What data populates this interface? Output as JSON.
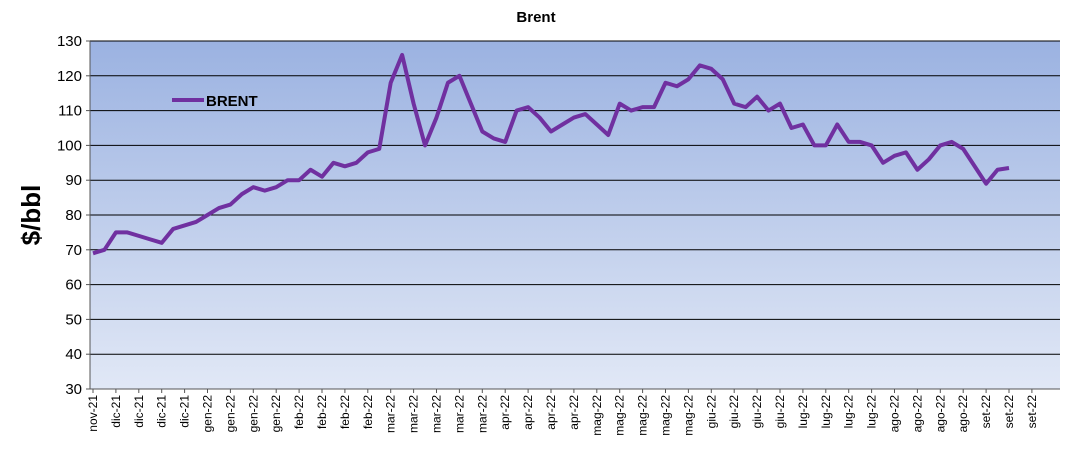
{
  "chart_data": {
    "type": "line",
    "title": "Brent",
    "y_label": "$/bbl",
    "categories": [
      "nov-21",
      null,
      "dic-21",
      null,
      "dic-21",
      null,
      "dic-21",
      null,
      "dic-21",
      null,
      "gen-22",
      null,
      "gen-22",
      null,
      "gen-22",
      null,
      "gen-22",
      null,
      "feb-22",
      null,
      "feb-22",
      null,
      "feb-22",
      null,
      "feb-22",
      null,
      "mar-22",
      null,
      "mar-22",
      null,
      "mar-22",
      null,
      "mar-22",
      null,
      "mar-22",
      null,
      "apr-22",
      null,
      "apr-22",
      null,
      "apr-22",
      null,
      "apr-22",
      null,
      "mag-22",
      null,
      "mag-22",
      null,
      "mag-22",
      null,
      "mag-22",
      null,
      "mag-22",
      null,
      "giu-22",
      null,
      "giu-22",
      null,
      "giu-22",
      null,
      "giu-22",
      null,
      "lug-22",
      null,
      "lug-22",
      null,
      "lug-22",
      null,
      "lug-22",
      null,
      "ago-22",
      null,
      "ago-22",
      null,
      "ago-22",
      null,
      "ago-22",
      null,
      "set-22",
      null,
      "set-22",
      null,
      "set-22"
    ],
    "series": [
      {
        "name": "BRENT",
        "color": "#7030a0",
        "values": [
          69,
          70,
          75,
          75,
          74,
          73,
          72,
          76,
          77,
          78,
          80,
          82,
          83,
          86,
          88,
          87,
          88,
          90,
          90,
          93,
          91,
          95,
          94,
          95,
          98,
          99,
          118,
          126,
          112,
          100,
          108,
          118,
          120,
          112,
          104,
          102,
          101,
          110,
          111,
          108,
          104,
          106,
          108,
          109,
          106,
          103,
          112,
          110,
          111,
          111,
          118,
          117,
          119,
          123,
          122,
          119,
          112,
          111,
          114,
          110,
          112,
          105,
          106,
          100,
          100,
          106,
          101,
          101,
          100,
          95,
          97,
          98,
          93,
          96,
          100,
          101,
          99,
          94,
          89,
          93,
          93.5,
          null,
          null
        ]
      }
    ],
    "ylim": [
      30,
      130
    ],
    "yticks": [
      30,
      40,
      50,
      60,
      70,
      80,
      90,
      100,
      110,
      120,
      130
    ],
    "grid": true,
    "legend": "upper left"
  }
}
